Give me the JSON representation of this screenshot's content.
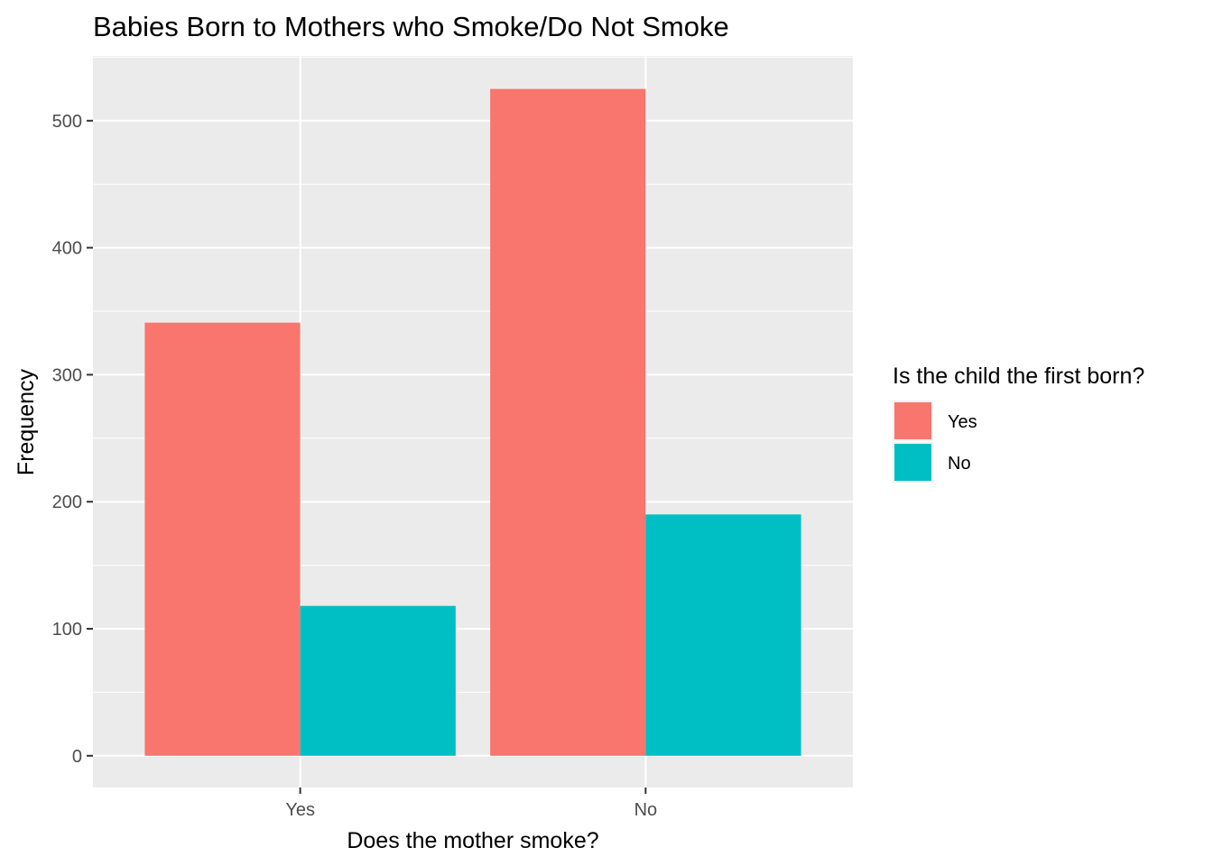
{
  "chart_data": {
    "type": "bar",
    "title": "Babies Born to Mothers who Smoke/Do Not Smoke",
    "xlabel": "Does the mother smoke?",
    "ylabel": "Frequency",
    "categories": [
      "Yes",
      "No"
    ],
    "series": [
      {
        "name": "Yes",
        "color": "#F8766D",
        "values": [
          341,
          525
        ]
      },
      {
        "name": "No",
        "color": "#00BFC4",
        "values": [
          118,
          190
        ]
      }
    ],
    "ylim": [
      -25,
      551
    ],
    "yticks": [
      0,
      100,
      200,
      300,
      400,
      500
    ],
    "grid": true,
    "panel_background": "#EBEBEB",
    "legend": {
      "title": "Is the child the first born?",
      "position": "right"
    }
  }
}
